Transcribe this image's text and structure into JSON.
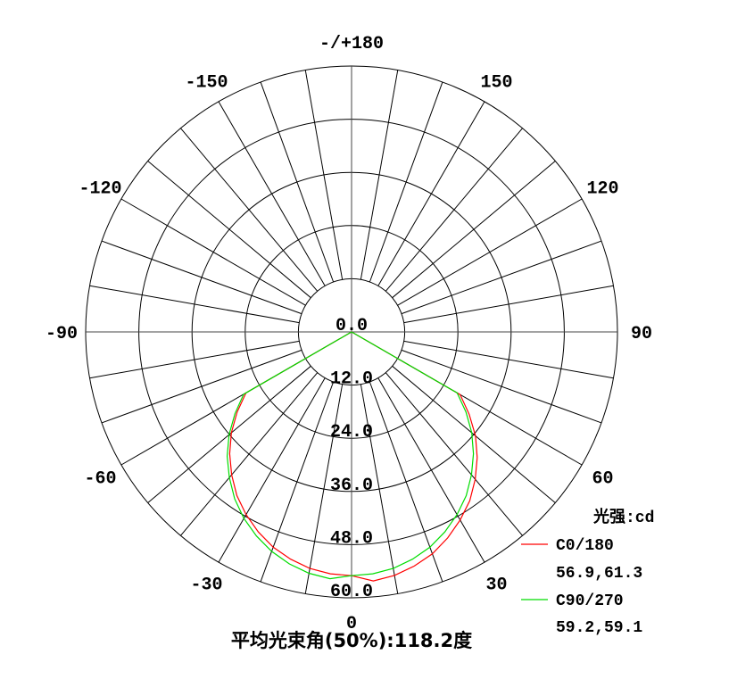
{
  "chart_data": {
    "type": "polar-line",
    "title": "平均光束角(50%):118.2度",
    "radial_unit_label": "光强:cd",
    "radial_range": [
      0,
      60
    ],
    "radial_ticks": [
      "0.0",
      "12.0",
      "24.0",
      "36.0",
      "48.0",
      "60.0"
    ],
    "radial_tick_values": [
      0,
      12,
      24,
      36,
      48,
      60
    ],
    "angle_step_deg": 10,
    "angle_labels": [
      {
        "angle": 0,
        "text": "0"
      },
      {
        "angle": 30,
        "text": "30"
      },
      {
        "angle": 60,
        "text": "60"
      },
      {
        "angle": 90,
        "text": "90"
      },
      {
        "angle": 120,
        "text": "120"
      },
      {
        "angle": 150,
        "text": "150"
      },
      {
        "angle": 180,
        "text": "-/+180"
      },
      {
        "angle": -150,
        "text": "-150"
      },
      {
        "angle": -120,
        "text": "-120"
      },
      {
        "angle": -90,
        "text": "-90"
      },
      {
        "angle": -60,
        "text": "-60"
      },
      {
        "angle": -30,
        "text": "-30"
      }
    ],
    "angles": [
      -90,
      -85,
      -80,
      -75,
      -70,
      -65,
      -60,
      -55,
      -50,
      -45,
      -40,
      -35,
      -30,
      -25,
      -20,
      -15,
      -10,
      -5,
      0,
      5,
      10,
      15,
      20,
      25,
      30,
      35,
      40,
      45,
      50,
      55,
      60,
      65,
      70,
      75,
      80,
      85,
      90
    ],
    "series": [
      {
        "name": "C0/180",
        "note": "56.9,61.3",
        "color": "#ff0000",
        "values": [
          0,
          0,
          0,
          0,
          0,
          0,
          27.5,
          31.5,
          35.4,
          38.9,
          42.1,
          45.1,
          47.6,
          49.8,
          51.7,
          53.1,
          54.2,
          54.8,
          55.0,
          56.4,
          55.8,
          54.7,
          53.3,
          51.3,
          49.0,
          46.5,
          43.4,
          40.1,
          36.5,
          32.4,
          28.3,
          0,
          0,
          0,
          0,
          0,
          0
        ]
      },
      {
        "name": "C90/270",
        "note": "59.2,59.1",
        "color": "#00dd00",
        "values": [
          0,
          0,
          0,
          0,
          0,
          0,
          28.1,
          32.1,
          36.1,
          39.7,
          42.9,
          46.0,
          48.6,
          50.8,
          52.7,
          54.2,
          55.3,
          55.9,
          55.0,
          54.8,
          54.2,
          53.1,
          51.7,
          49.8,
          47.6,
          45.1,
          42.1,
          38.9,
          35.4,
          31.5,
          27.5,
          0,
          0,
          0,
          0,
          0,
          0
        ]
      }
    ]
  }
}
